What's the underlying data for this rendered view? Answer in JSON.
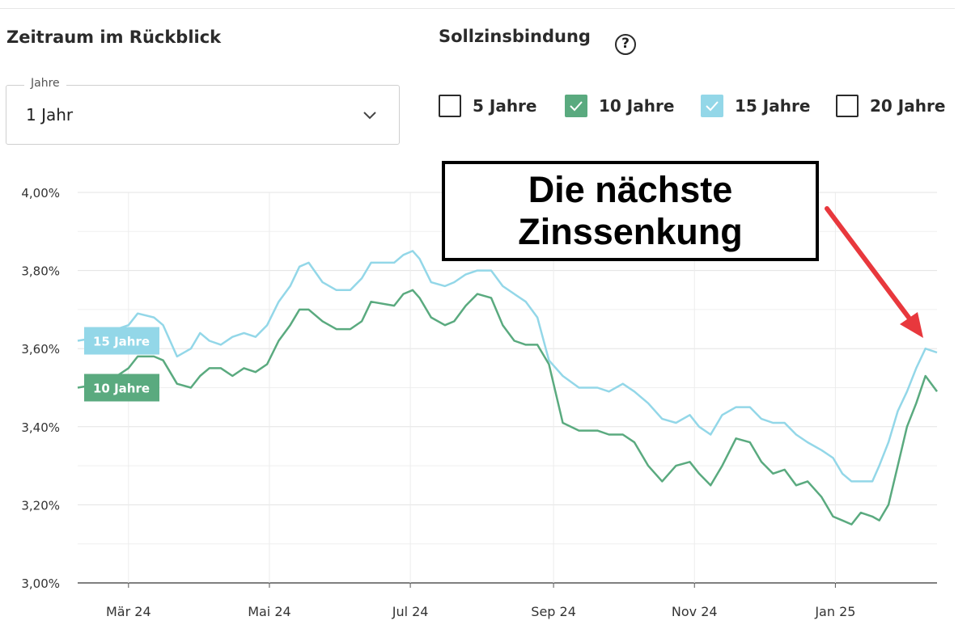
{
  "header": {
    "period_title": "Zeitraum im Rückblick",
    "fixation_title": "Sollzinsbindung",
    "help_icon_glyph": "?"
  },
  "period_select": {
    "legend": "Jahre",
    "value": "1 Jahr"
  },
  "fixation_options": [
    {
      "label": "5 Jahre",
      "checked": false,
      "color": "#ffffff"
    },
    {
      "label": "10 Jahre",
      "checked": true,
      "color": "#5aaa7f"
    },
    {
      "label": "15 Jahre",
      "checked": true,
      "color": "#93d7e8"
    },
    {
      "label": "20 Jahre",
      "checked": false,
      "color": "#ffffff"
    }
  ],
  "annotation": {
    "line1": "Die nächste",
    "line2": "Zinssenkung",
    "arrow_color": "#e8383d"
  },
  "chart_data": {
    "type": "line",
    "ylim": [
      3.0,
      4.0
    ],
    "y_ticks": [
      "3,00%",
      "3,20%",
      "3,40%",
      "3,60%",
      "3,80%",
      "4,00%"
    ],
    "x_ticks": [
      "Mär 24",
      "Mai 24",
      "Jul 24",
      "Sep 24",
      "Nov 24",
      "Jan 25"
    ],
    "x_tick_dates": [
      "2024-03-01",
      "2024-05-01",
      "2024-07-01",
      "2024-09-01",
      "2024-11-01",
      "2025-01-01"
    ],
    "x_range": [
      "2024-02-08",
      "2025-02-14"
    ],
    "grid": true,
    "series": [
      {
        "name": "15 Jahre",
        "color": "#93d7e8",
        "points": [
          [
            "2024-02-08",
            3.62
          ],
          [
            "2024-02-18",
            3.63
          ],
          [
            "2024-02-25",
            3.65
          ],
          [
            "2024-03-01",
            3.66
          ],
          [
            "2024-03-05",
            3.69
          ],
          [
            "2024-03-12",
            3.68
          ],
          [
            "2024-03-16",
            3.66
          ],
          [
            "2024-03-22",
            3.58
          ],
          [
            "2024-03-28",
            3.6
          ],
          [
            "2024-04-01",
            3.64
          ],
          [
            "2024-04-05",
            3.62
          ],
          [
            "2024-04-10",
            3.61
          ],
          [
            "2024-04-15",
            3.63
          ],
          [
            "2024-04-20",
            3.64
          ],
          [
            "2024-04-25",
            3.63
          ],
          [
            "2024-04-30",
            3.66
          ],
          [
            "2024-05-05",
            3.72
          ],
          [
            "2024-05-10",
            3.76
          ],
          [
            "2024-05-14",
            3.81
          ],
          [
            "2024-05-18",
            3.82
          ],
          [
            "2024-05-24",
            3.77
          ],
          [
            "2024-05-30",
            3.75
          ],
          [
            "2024-06-05",
            3.75
          ],
          [
            "2024-06-10",
            3.78
          ],
          [
            "2024-06-14",
            3.82
          ],
          [
            "2024-06-24",
            3.82
          ],
          [
            "2024-06-28",
            3.84
          ],
          [
            "2024-07-02",
            3.85
          ],
          [
            "2024-07-05",
            3.83
          ],
          [
            "2024-07-10",
            3.77
          ],
          [
            "2024-07-16",
            3.76
          ],
          [
            "2024-07-20",
            3.77
          ],
          [
            "2024-07-25",
            3.79
          ],
          [
            "2024-07-30",
            3.8
          ],
          [
            "2024-08-05",
            3.8
          ],
          [
            "2024-08-10",
            3.76
          ],
          [
            "2024-08-15",
            3.74
          ],
          [
            "2024-08-20",
            3.72
          ],
          [
            "2024-08-25",
            3.68
          ],
          [
            "2024-08-30",
            3.57
          ],
          [
            "2024-09-05",
            3.53
          ],
          [
            "2024-09-12",
            3.5
          ],
          [
            "2024-09-20",
            3.5
          ],
          [
            "2024-09-25",
            3.49
          ],
          [
            "2024-10-01",
            3.51
          ],
          [
            "2024-10-06",
            3.49
          ],
          [
            "2024-10-12",
            3.46
          ],
          [
            "2024-10-18",
            3.42
          ],
          [
            "2024-10-24",
            3.41
          ],
          [
            "2024-10-30",
            3.43
          ],
          [
            "2024-11-03",
            3.4
          ],
          [
            "2024-11-08",
            3.38
          ],
          [
            "2024-11-13",
            3.43
          ],
          [
            "2024-11-19",
            3.45
          ],
          [
            "2024-11-25",
            3.45
          ],
          [
            "2024-11-30",
            3.42
          ],
          [
            "2024-12-05",
            3.41
          ],
          [
            "2024-12-10",
            3.41
          ],
          [
            "2024-12-15",
            3.38
          ],
          [
            "2024-12-20",
            3.36
          ],
          [
            "2024-12-26",
            3.34
          ],
          [
            "2024-12-31",
            3.32
          ],
          [
            "2025-01-04",
            3.28
          ],
          [
            "2025-01-08",
            3.26
          ],
          [
            "2025-01-12",
            3.26
          ],
          [
            "2025-01-17",
            3.26
          ],
          [
            "2025-01-20",
            3.3
          ],
          [
            "2025-01-24",
            3.36
          ],
          [
            "2025-01-28",
            3.44
          ],
          [
            "2025-02-01",
            3.49
          ],
          [
            "2025-02-05",
            3.55
          ],
          [
            "2025-02-09",
            3.6
          ],
          [
            "2025-02-14",
            3.59
          ]
        ]
      },
      {
        "name": "10 Jahre",
        "color": "#5aaa7f",
        "points": [
          [
            "2024-02-08",
            3.5
          ],
          [
            "2024-02-18",
            3.51
          ],
          [
            "2024-02-25",
            3.53
          ],
          [
            "2024-03-01",
            3.55
          ],
          [
            "2024-03-05",
            3.58
          ],
          [
            "2024-03-12",
            3.58
          ],
          [
            "2024-03-16",
            3.57
          ],
          [
            "2024-03-22",
            3.51
          ],
          [
            "2024-03-28",
            3.5
          ],
          [
            "2024-04-01",
            3.53
          ],
          [
            "2024-04-05",
            3.55
          ],
          [
            "2024-04-10",
            3.55
          ],
          [
            "2024-04-15",
            3.53
          ],
          [
            "2024-04-20",
            3.55
          ],
          [
            "2024-04-25",
            3.54
          ],
          [
            "2024-04-30",
            3.56
          ],
          [
            "2024-05-05",
            3.62
          ],
          [
            "2024-05-10",
            3.66
          ],
          [
            "2024-05-14",
            3.7
          ],
          [
            "2024-05-18",
            3.7
          ],
          [
            "2024-05-24",
            3.67
          ],
          [
            "2024-05-30",
            3.65
          ],
          [
            "2024-06-05",
            3.65
          ],
          [
            "2024-06-10",
            3.67
          ],
          [
            "2024-06-14",
            3.72
          ],
          [
            "2024-06-24",
            3.71
          ],
          [
            "2024-06-28",
            3.74
          ],
          [
            "2024-07-02",
            3.75
          ],
          [
            "2024-07-05",
            3.73
          ],
          [
            "2024-07-10",
            3.68
          ],
          [
            "2024-07-16",
            3.66
          ],
          [
            "2024-07-20",
            3.67
          ],
          [
            "2024-07-25",
            3.71
          ],
          [
            "2024-07-30",
            3.74
          ],
          [
            "2024-08-05",
            3.73
          ],
          [
            "2024-08-10",
            3.66
          ],
          [
            "2024-08-15",
            3.62
          ],
          [
            "2024-08-20",
            3.61
          ],
          [
            "2024-08-25",
            3.61
          ],
          [
            "2024-08-30",
            3.56
          ],
          [
            "2024-09-05",
            3.41
          ],
          [
            "2024-09-12",
            3.39
          ],
          [
            "2024-09-20",
            3.39
          ],
          [
            "2024-09-25",
            3.38
          ],
          [
            "2024-10-01",
            3.38
          ],
          [
            "2024-10-06",
            3.36
          ],
          [
            "2024-10-12",
            3.3
          ],
          [
            "2024-10-18",
            3.26
          ],
          [
            "2024-10-24",
            3.3
          ],
          [
            "2024-10-30",
            3.31
          ],
          [
            "2024-11-03",
            3.28
          ],
          [
            "2024-11-08",
            3.25
          ],
          [
            "2024-11-13",
            3.3
          ],
          [
            "2024-11-19",
            3.37
          ],
          [
            "2024-11-25",
            3.36
          ],
          [
            "2024-11-30",
            3.31
          ],
          [
            "2024-12-05",
            3.28
          ],
          [
            "2024-12-10",
            3.29
          ],
          [
            "2024-12-15",
            3.25
          ],
          [
            "2024-12-20",
            3.26
          ],
          [
            "2024-12-26",
            3.22
          ],
          [
            "2024-12-31",
            3.17
          ],
          [
            "2025-01-04",
            3.16
          ],
          [
            "2025-01-08",
            3.15
          ],
          [
            "2025-01-12",
            3.18
          ],
          [
            "2025-01-17",
            3.17
          ],
          [
            "2025-01-20",
            3.16
          ],
          [
            "2025-01-24",
            3.2
          ],
          [
            "2025-01-28",
            3.3
          ],
          [
            "2025-02-01",
            3.4
          ],
          [
            "2025-02-05",
            3.46
          ],
          [
            "2025-02-09",
            3.53
          ],
          [
            "2025-02-14",
            3.49
          ]
        ]
      }
    ]
  }
}
